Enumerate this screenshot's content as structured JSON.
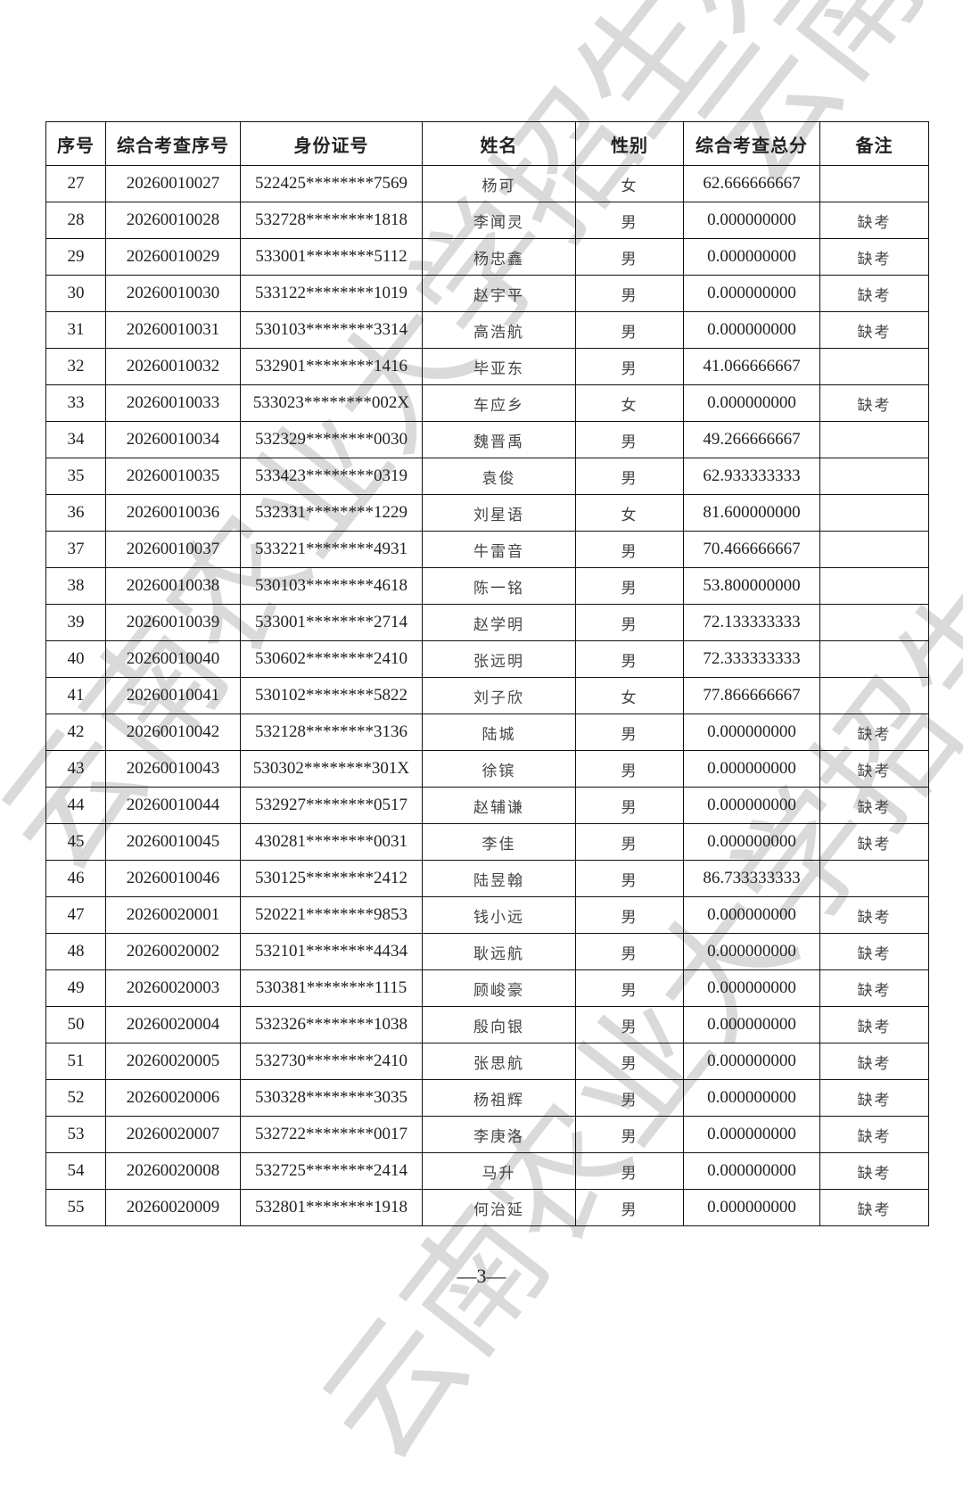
{
  "watermark": "云南农业大学招生办",
  "table": {
    "headers": [
      "序号",
      "综合考查序号",
      "身份证号",
      "姓名",
      "性别",
      "综合考查总分",
      "备注"
    ],
    "rows": [
      [
        "27",
        "20260010027",
        "522425********7569",
        "杨可",
        "女",
        "62.666666667",
        ""
      ],
      [
        "28",
        "20260010028",
        "532728********1818",
        "李闻灵",
        "男",
        "0.000000000",
        "缺考"
      ],
      [
        "29",
        "20260010029",
        "533001********5112",
        "杨忠鑫",
        "男",
        "0.000000000",
        "缺考"
      ],
      [
        "30",
        "20260010030",
        "533122********1019",
        "赵宇平",
        "男",
        "0.000000000",
        "缺考"
      ],
      [
        "31",
        "20260010031",
        "530103********3314",
        "高浩航",
        "男",
        "0.000000000",
        "缺考"
      ],
      [
        "32",
        "20260010032",
        "532901********1416",
        "毕亚东",
        "男",
        "41.066666667",
        ""
      ],
      [
        "33",
        "20260010033",
        "533023********002X",
        "车应乡",
        "女",
        "0.000000000",
        "缺考"
      ],
      [
        "34",
        "20260010034",
        "532329********0030",
        "魏晋禹",
        "男",
        "49.266666667",
        ""
      ],
      [
        "35",
        "20260010035",
        "533423********0319",
        "袁俊",
        "男",
        "62.933333333",
        ""
      ],
      [
        "36",
        "20260010036",
        "532331********1229",
        "刘星语",
        "女",
        "81.600000000",
        ""
      ],
      [
        "37",
        "20260010037",
        "533221********4931",
        "牛雷音",
        "男",
        "70.466666667",
        ""
      ],
      [
        "38",
        "20260010038",
        "530103********4618",
        "陈一铭",
        "男",
        "53.800000000",
        ""
      ],
      [
        "39",
        "20260010039",
        "533001********2714",
        "赵学明",
        "男",
        "72.133333333",
        ""
      ],
      [
        "40",
        "20260010040",
        "530602********2410",
        "张远明",
        "男",
        "72.333333333",
        ""
      ],
      [
        "41",
        "20260010041",
        "530102********5822",
        "刘子欣",
        "女",
        "77.866666667",
        ""
      ],
      [
        "42",
        "20260010042",
        "532128********3136",
        "陆城",
        "男",
        "0.000000000",
        "缺考"
      ],
      [
        "43",
        "20260010043",
        "530302********301X",
        "徐镔",
        "男",
        "0.000000000",
        "缺考"
      ],
      [
        "44",
        "20260010044",
        "532927********0517",
        "赵辅谦",
        "男",
        "0.000000000",
        "缺考"
      ],
      [
        "45",
        "20260010045",
        "430281********0031",
        "李佳",
        "男",
        "0.000000000",
        "缺考"
      ],
      [
        "46",
        "20260010046",
        "530125********2412",
        "陆昱翰",
        "男",
        "86.733333333",
        ""
      ],
      [
        "47",
        "20260020001",
        "520221********9853",
        "钱小远",
        "男",
        "0.000000000",
        "缺考"
      ],
      [
        "48",
        "20260020002",
        "532101********4434",
        "耿远航",
        "男",
        "0.000000000",
        "缺考"
      ],
      [
        "49",
        "20260020003",
        "530381********1115",
        "顾峻豪",
        "男",
        "0.000000000",
        "缺考"
      ],
      [
        "50",
        "20260020004",
        "532326********1038",
        "殷向银",
        "男",
        "0.000000000",
        "缺考"
      ],
      [
        "51",
        "20260020005",
        "532730********2410",
        "张思航",
        "男",
        "0.000000000",
        "缺考"
      ],
      [
        "52",
        "20260020006",
        "530328********3035",
        "杨祖辉",
        "男",
        "0.000000000",
        "缺考"
      ],
      [
        "53",
        "20260020007",
        "532722********0017",
        "李庚洛",
        "男",
        "0.000000000",
        "缺考"
      ],
      [
        "54",
        "20260020008",
        "532725********2414",
        "马升",
        "男",
        "0.000000000",
        "缺考"
      ],
      [
        "55",
        "20260020009",
        "532801********1918",
        "何治延",
        "男",
        "0.000000000",
        "缺考"
      ]
    ]
  },
  "page_number": "—3—"
}
